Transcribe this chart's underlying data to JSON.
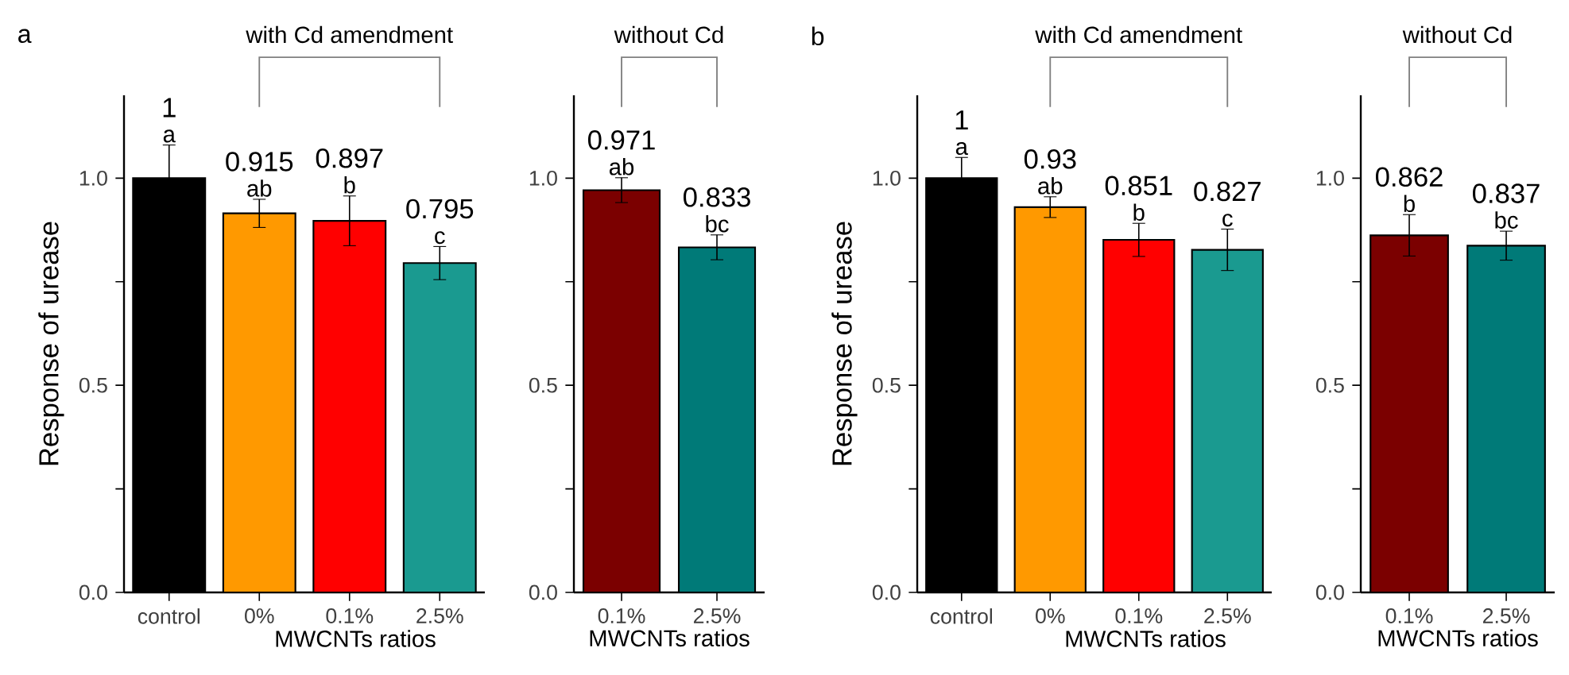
{
  "chart_data": [
    {
      "type": "bar",
      "title": "a",
      "ylabel": "Response of urease",
      "xlabel": "MWCNTs ratios",
      "categories": [
        "control",
        "0%",
        "0.1%",
        "2.5%"
      ],
      "values": [
        1,
        0.915,
        0.897,
        0.795
      ],
      "errors": [
        0.08,
        0.034,
        0.06,
        0.04
      ],
      "colors": [
        "#000000",
        "#ff9900",
        "#ff0000",
        "#1a9a90"
      ],
      "ylim": [
        0,
        1.2
      ],
      "yticks": [
        {
          "value": 0,
          "label": "0.0"
        },
        {
          "value": 0.25,
          "label": null
        },
        {
          "value": 0.5,
          "label": "0.5"
        },
        {
          "value": 0.75,
          "label": null
        },
        {
          "value": 1,
          "label": "1.0"
        }
      ],
      "data_labels": true,
      "annotations": [
        "with Cd amendment",
        {
          "text": "a",
          "x": "control",
          "y": 1.08
        },
        {
          "text": "ab",
          "x": "0%",
          "y": 0.949
        },
        {
          "text": "b",
          "x": "0.1%",
          "y": 0.957
        },
        {
          "text": "c",
          "x": "2.5%",
          "y": 0.835
        }
      ]
    },
    {
      "type": "bar",
      "xlabel": "MWCNTs ratios",
      "categories": [
        "0.1%",
        "2.5%"
      ],
      "values": [
        0.971,
        0.833
      ],
      "errors": [
        0.03,
        0.03
      ],
      "colors": [
        "#7b0000",
        "#007a78"
      ],
      "ylim": [
        0,
        1.2
      ],
      "yticks": [
        {
          "value": 0,
          "label": "0.0"
        },
        {
          "value": 0.25,
          "label": null
        },
        {
          "value": 0.5,
          "label": "0.5"
        },
        {
          "value": 0.75,
          "label": null
        },
        {
          "value": 1,
          "label": "1.0"
        }
      ],
      "data_labels": true,
      "annotations": [
        "without Cd",
        {
          "text": "ab",
          "x": "0.1%",
          "y": 1.001
        },
        {
          "text": "bc",
          "x": "2.5%",
          "y": 0.863
        }
      ]
    },
    {
      "type": "bar",
      "title": "b",
      "ylabel": "Response of urease",
      "xlabel": "MWCNTs ratios",
      "categories": [
        "control",
        "0%",
        "0.1%",
        "2.5%"
      ],
      "values": [
        1,
        0.93,
        0.851,
        0.827
      ],
      "errors": [
        0.05,
        0.025,
        0.04,
        0.05
      ],
      "colors": [
        "#000000",
        "#ff9900",
        "#ff0000",
        "#1a9a90"
      ],
      "ylim": [
        0,
        1.2
      ],
      "yticks": [
        {
          "value": 0,
          "label": "0.0"
        },
        {
          "value": 0.25,
          "label": null
        },
        {
          "value": 0.5,
          "label": "0.5"
        },
        {
          "value": 0.75,
          "label": null
        },
        {
          "value": 1,
          "label": "1.0"
        }
      ],
      "data_labels": true,
      "annotations": [
        "with Cd amendment",
        {
          "text": "a",
          "x": "control",
          "y": 1.05
        },
        {
          "text": "ab",
          "x": "0%",
          "y": 0.955
        },
        {
          "text": "b",
          "x": "0.1%",
          "y": 0.891
        },
        {
          "text": "c",
          "x": "2.5%",
          "y": 0.877
        }
      ]
    },
    {
      "type": "bar",
      "xlabel": "MWCNTs ratios",
      "categories": [
        "0.1%",
        "2.5%"
      ],
      "values": [
        0.862,
        0.837
      ],
      "errors": [
        0.05,
        0.035
      ],
      "colors": [
        "#7b0000",
        "#007a78"
      ],
      "ylim": [
        0,
        1.2
      ],
      "yticks": [
        {
          "value": 0,
          "label": "0.0"
        },
        {
          "value": 0.25,
          "label": null
        },
        {
          "value": 0.5,
          "label": "0.5"
        },
        {
          "value": 0.75,
          "label": null
        },
        {
          "value": 1,
          "label": "1.0"
        }
      ],
      "data_labels": true,
      "annotations": [
        "without Cd",
        {
          "text": "b",
          "x": "0.1%",
          "y": 0.912
        },
        {
          "text": "bc",
          "x": "2.5%",
          "y": 0.872
        }
      ]
    }
  ]
}
